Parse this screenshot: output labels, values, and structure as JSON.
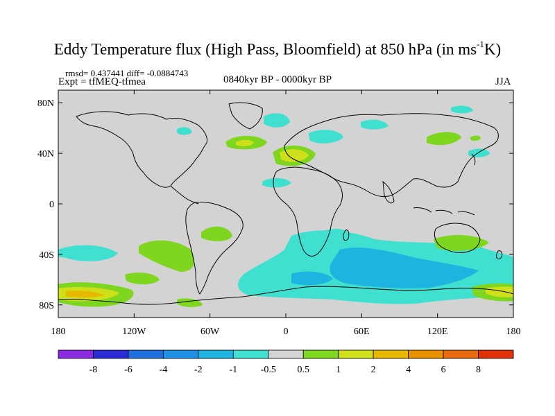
{
  "title": {
    "main": "Eddy Temperature flux (High Pass, Bloomfield) at 850 hPa (in ms",
    "sup": "-1",
    "tail": "K)"
  },
  "stats": "rmsd= 0.437441 diff= -0.0884743",
  "expt": "Expt = tfMEQ-tfmea",
  "period": "0840kyr BP - 0000kyr BP",
  "season": "JJA",
  "axes": {
    "lon_labels": [
      "180",
      "120W",
      "60W",
      "0",
      "60E",
      "120E",
      "180"
    ],
    "lat_labels": [
      "80N",
      "40N",
      "0",
      "40S",
      "80S"
    ]
  },
  "colorbar": {
    "labels": [
      "-8",
      "-6",
      "-4",
      "-2",
      "-1",
      "-0.5",
      "0.5",
      "1",
      "2",
      "4",
      "6",
      "8"
    ],
    "colors": [
      "#8a2be2",
      "#2b2bd6",
      "#1f6fdc",
      "#1e90e6",
      "#1fb4e0",
      "#40e0d0",
      "#d3d3d3",
      "#7ed61f",
      "#cfe01a",
      "#e6b800",
      "#e89000",
      "#e86a10",
      "#e0300a"
    ]
  },
  "colors": {
    "land_bg": "#d3d3d3",
    "coast": "#000000"
  }
}
